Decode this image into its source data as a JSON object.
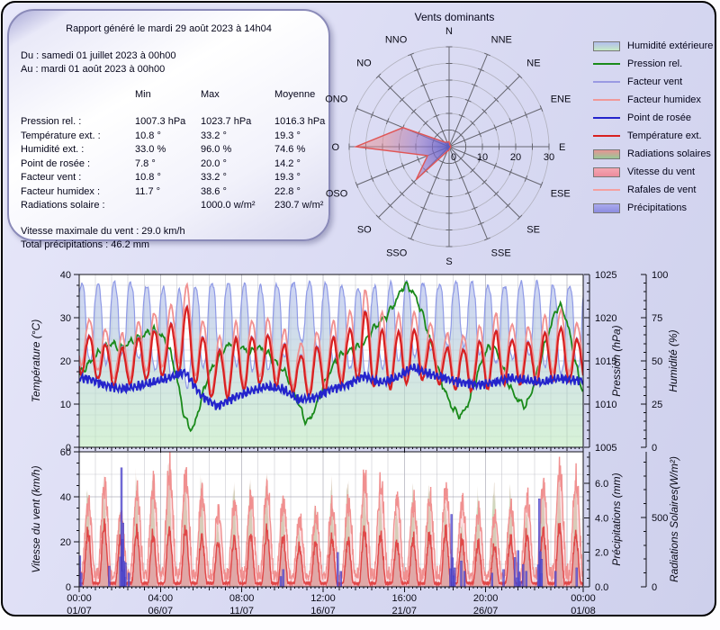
{
  "report_box": {
    "title": "Rapport généré le mardi 29 août 2023 à 14h04",
    "period_from": "Du : samedi 01 juillet 2023 à 00h00",
    "period_to": "Au : mardi 01 août 2023 à 00h00",
    "table": {
      "columns": [
        "Min",
        "Max",
        "Moyenne"
      ],
      "rows": [
        {
          "label": "Pression rel. :",
          "min": "1007.3 hPa",
          "max": "1023.7 hPa",
          "mean": "1016.3 hPa"
        },
        {
          "label": "Température ext. :",
          "min": "10.8 °",
          "max": "33.2 °",
          "mean": "19.3 °"
        },
        {
          "label": "Humidité ext. :",
          "min": "33.0 %",
          "max": "96.0 %",
          "mean": "74.6 %"
        },
        {
          "label": "Point de rosée :",
          "min": "7.8 °",
          "max": "20.0 °",
          "mean": "14.2 °"
        },
        {
          "label": "Facteur vent :",
          "min": "10.8 °",
          "max": "33.2 °",
          "mean": "19.3 °"
        },
        {
          "label": "Facteur humidex :",
          "min": "11.7 °",
          "max": "38.6 °",
          "mean": "22.8 °"
        },
        {
          "label": "Radiations solaire :",
          "min": "",
          "max": "1000.0 w/m²",
          "mean": "230.7 w/m²"
        }
      ]
    },
    "footer": [
      "Vitesse maximale du vent : 29.0 km/h",
      "Total précipitations : 46.2 mm"
    ]
  },
  "legend": {
    "items": [
      {
        "label": "Humidité extérieure",
        "type": "patch",
        "c1": "#b2beee",
        "c2": "#c6eac6"
      },
      {
        "label": "Pression rel.",
        "type": "line",
        "color": "#1a8a1a"
      },
      {
        "label": "Facteur vent",
        "type": "line",
        "color": "#9a9ae2"
      },
      {
        "label": "Facteur humidex",
        "type": "line",
        "color": "#f09898"
      },
      {
        "label": "Point de rosée",
        "type": "line",
        "color": "#2424cc"
      },
      {
        "label": "Température ext.",
        "type": "line",
        "color": "#d82020"
      },
      {
        "label": "Radiations solaires",
        "type": "patch",
        "c1": "#e89494",
        "c2": "#96c896"
      },
      {
        "label": "Vitesse du vent",
        "type": "patch",
        "c1": "#f4a6b2",
        "c2": "#ec8c9c"
      },
      {
        "label": "Rafales de vent",
        "type": "line",
        "color": "#f4a0a0"
      },
      {
        "label": "Précipitations",
        "type": "patch",
        "c1": "#aaaaee",
        "c2": "#8c8ce0"
      }
    ]
  },
  "chart_data": [
    {
      "type": "polar-area",
      "title": "Vents dominants",
      "directions": [
        "N",
        "NNE",
        "NE",
        "ENE",
        "E",
        "ESE",
        "SE",
        "SSE",
        "S",
        "SSO",
        "SO",
        "OSO",
        "O",
        "ONO",
        "NO",
        "NNO"
      ],
      "values": [
        1.5,
        0.5,
        0.5,
        0.5,
        0.5,
        0.5,
        0.5,
        0.5,
        1,
        1.5,
        14,
        7,
        28,
        15,
        2,
        1.5
      ],
      "radial_ticks": [
        "0",
        "10",
        "20",
        "30"
      ],
      "rmax": 30,
      "stroke": "#e05555",
      "fill_center": "#5858c8",
      "fill_outer": "#e89090"
    },
    {
      "type": "line",
      "x_range_days": 31,
      "x_major_days": [
        0,
        5,
        10,
        15,
        20,
        25,
        31
      ],
      "axes": {
        "temperature": {
          "label": "Température (°C)",
          "min": 0,
          "max": 40,
          "ticks": [
            "0",
            "10",
            "20",
            "30",
            "40"
          ]
        },
        "pressure": {
          "label": "Pression (hPa)",
          "min": 1005,
          "max": 1025,
          "ticks": [
            "1005",
            "1010",
            "1015",
            "1020",
            "1025"
          ]
        },
        "humidity": {
          "label": "Humidité (%)",
          "min": 0,
          "max": 100,
          "ticks": [
            "0",
            "25",
            "50",
            "75",
            "100"
          ]
        }
      },
      "series": {
        "temp_max_daily": [
          26,
          24,
          22.5,
          25,
          27,
          27.5,
          33.2,
          26,
          22,
          25,
          25.5,
          26,
          24,
          21,
          23,
          25,
          26.5,
          32,
          27,
          26.5,
          27.5,
          25,
          23,
          22.5,
          24,
          27,
          25,
          24,
          26,
          28,
          25
        ],
        "temp_min_daily": [
          17,
          15,
          14,
          15,
          16,
          17,
          18,
          13,
          10.8,
          12,
          14,
          15,
          14,
          12,
          11.5,
          14,
          15,
          16,
          13,
          14,
          15,
          16,
          14,
          13,
          13,
          14,
          15,
          14,
          15,
          16,
          15
        ],
        "dew_mean_daily": [
          16,
          14.5,
          13.5,
          14,
          15,
          16,
          17.5,
          12,
          9.5,
          11.5,
          13,
          14,
          13.5,
          11,
          11.5,
          13.5,
          14.5,
          16.5,
          15,
          16,
          18.5,
          17,
          16,
          15,
          14.5,
          15,
          16,
          15.5,
          15,
          16,
          15.5
        ],
        "humidity_max_daily": [
          95,
          94,
          96,
          95,
          93,
          92,
          90,
          94,
          96,
          95,
          94,
          93,
          95,
          96,
          95,
          94,
          93,
          92,
          94,
          95,
          96,
          95,
          94,
          96,
          95,
          93,
          94,
          96,
          95,
          93,
          94
        ],
        "humidity_min_daily": [
          50,
          48,
          55,
          52,
          45,
          42,
          33,
          45,
          55,
          48,
          45,
          44,
          50,
          62,
          58,
          50,
          46,
          40,
          45,
          50,
          52,
          55,
          58,
          60,
          55,
          48,
          50,
          55,
          48,
          42,
          46
        ],
        "pressure_halfday": [
          1013.5,
          1014.5,
          1015.5,
          1016.5,
          1017,
          1016.5,
          1017,
          1017.5,
          1018,
          1018.5,
          1018,
          1016.5,
          1013,
          1008.5,
          1007.3,
          1010.5,
          1013.5,
          1015,
          1016.5,
          1017,
          1016.5,
          1016,
          1016.5,
          1016,
          1015,
          1014,
          1012.5,
          1010,
          1008,
          1009.5,
          1012,
          1014,
          1015.5,
          1016,
          1016.5,
          1017,
          1018.5,
          1019.5,
          1020.5,
          1022,
          1023.7,
          1023,
          1021,
          1018,
          1014.5,
          1011.5,
          1009.5,
          1008.8,
          1010.5,
          1013.5,
          1016,
          1016.5,
          1014.5,
          1012,
          1010.5,
          1010,
          1012.5,
          1016,
          1019,
          1021.3,
          1019.5,
          1015,
          1011.5
        ]
      },
      "colors": {
        "humidity_fill_top": "#aab4ee",
        "humidity_fill_bottom": "#bdeabd",
        "humidity_outline": "#8f9ae6",
        "pressure": "#1a8a1a",
        "humidex": "#f09090",
        "wind_factor": "#9c9ce4",
        "temperature": "#d82020",
        "dew_point": "#2424cc"
      }
    },
    {
      "type": "area",
      "axes": {
        "wind": {
          "label": "Vitesse du vent (km/h)",
          "min": 0,
          "max": 60,
          "ticks": [
            "0",
            "20",
            "40",
            "60"
          ]
        },
        "precipitation": {
          "label": "Précipitations (mm)",
          "ticks": [
            "0.0",
            "2.0",
            "4.0",
            "6.0"
          ]
        },
        "radiation": {
          "label": "Radiations Solaires(W/m²)",
          "ticks": [
            "0",
            "500"
          ]
        }
      },
      "x_tick_times": [
        "00:00",
        "04:00",
        "08:00",
        "12:00",
        "16:00",
        "20:00",
        "00:00"
      ],
      "x_tick_dates": [
        "01/07",
        "06/07",
        "11/07",
        "16/07",
        "21/07",
        "26/07",
        "01/08"
      ],
      "wind_peak_daily": [
        25,
        29,
        22,
        26,
        24,
        26,
        27,
        23,
        20,
        22,
        24,
        26,
        23,
        18,
        20,
        22,
        21,
        26,
        24,
        20,
        22,
        24,
        26,
        22,
        20,
        18,
        22,
        24,
        26,
        28,
        24
      ],
      "gust_peak_daily": [
        36,
        44,
        31,
        41,
        44,
        51,
        48,
        40,
        32,
        36,
        38,
        42,
        36,
        28,
        30,
        34,
        36,
        46,
        44,
        38,
        36,
        38,
        42,
        36,
        32,
        30,
        34,
        38,
        44,
        51,
        46
      ],
      "radiation_peak_daily": [
        750,
        820,
        600,
        850,
        880,
        950,
        920,
        850,
        500,
        780,
        820,
        850,
        700,
        450,
        650,
        800,
        820,
        850,
        700,
        600,
        750,
        800,
        650,
        500,
        700,
        800,
        750,
        600,
        820,
        850,
        780
      ],
      "precip_events": [
        [
          0.05,
          1.8
        ],
        [
          0.12,
          0.8
        ],
        [
          1.85,
          1.2
        ],
        [
          2.6,
          6.9
        ],
        [
          2.7,
          3.7
        ],
        [
          2.85,
          1.4
        ],
        [
          3.05,
          0.8
        ],
        [
          12.4,
          0.6
        ],
        [
          12.55,
          1.0
        ],
        [
          15.9,
          2.0
        ],
        [
          16.1,
          0.9
        ],
        [
          22.9,
          4.2
        ],
        [
          23.1,
          1.1
        ],
        [
          23.5,
          1.5
        ],
        [
          23.7,
          0.9
        ],
        [
          25.4,
          0.8
        ],
        [
          26.1,
          1.0
        ],
        [
          26.8,
          1.7
        ],
        [
          27.0,
          2.1
        ],
        [
          27.3,
          1.3
        ],
        [
          27.5,
          0.9
        ],
        [
          28.3,
          5.1
        ],
        [
          28.45,
          1.6
        ],
        [
          29.3,
          0.9
        ],
        [
          30.6,
          1.1
        ]
      ],
      "colors": {
        "wind_fill": "rgba(240,120,140,0.42)",
        "wind_line": "#e04848",
        "gust_fill": "rgba(248,170,180,0.38)",
        "gust_line": "#f09090",
        "radiation_top": "#e08888",
        "radiation_bottom": "#8cc88c",
        "precipitation": "#5a52d6"
      }
    }
  ]
}
